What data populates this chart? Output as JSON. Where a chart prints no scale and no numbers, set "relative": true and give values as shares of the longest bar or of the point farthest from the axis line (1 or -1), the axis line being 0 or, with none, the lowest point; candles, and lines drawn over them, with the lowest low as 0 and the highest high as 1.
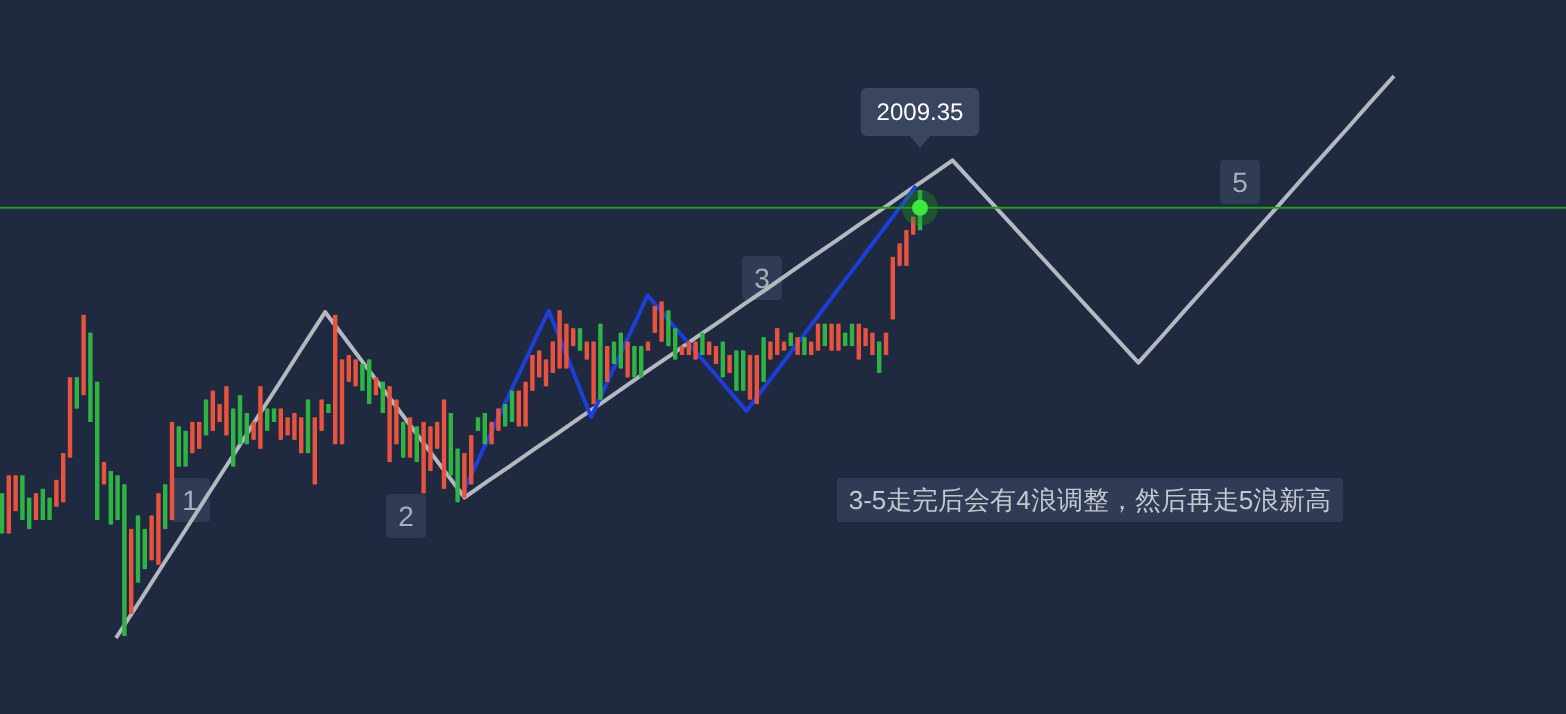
{
  "chart_data": [
    {
      "type": "candlestick",
      "relative": true,
      "tick_labels": false,
      "categories": [
        null,
        null,
        null,
        null,
        null,
        null,
        null,
        null,
        null,
        null,
        null,
        null,
        null,
        null,
        null,
        null,
        null,
        null,
        null,
        null,
        null,
        null,
        null,
        null,
        null,
        null,
        null,
        null,
        null,
        null,
        null,
        null,
        null,
        null,
        null,
        null,
        null,
        null,
        null,
        null,
        null,
        null,
        null,
        null,
        null,
        null,
        null,
        null,
        null,
        null,
        null,
        null,
        null,
        null,
        null,
        null,
        null,
        null,
        null,
        null,
        null,
        null,
        null,
        null,
        null,
        null,
        null,
        null,
        null,
        null,
        null,
        null,
        null,
        null,
        null,
        null,
        null,
        null,
        null,
        null,
        null,
        null,
        null,
        null,
        null,
        null,
        null,
        null,
        null,
        null,
        null,
        null,
        null,
        null,
        null,
        null,
        null,
        null,
        null,
        null,
        null,
        null,
        null,
        null,
        null,
        null,
        null,
        null,
        null,
        null,
        null,
        null,
        null,
        null,
        null,
        null,
        null,
        null,
        null,
        null,
        null,
        null,
        null,
        null,
        null,
        null,
        null,
        null,
        null,
        null,
        null,
        null,
        null,
        null,
        null,
        null
      ],
      "colors": [
        "#2fb344",
        "#e8533f",
        "#e8533f",
        "#2fb344",
        "#2fb344",
        "#e8533f",
        "#2fb344",
        "#2fb344",
        "#e8533f",
        "#e8533f",
        "#e8533f",
        "#2fb344",
        "#e8533f",
        "#2fb344",
        "#2fb344",
        "#e8533f",
        "#2fb344",
        "#2fb344",
        "#2fb344",
        "#e8533f",
        "#2fb344",
        "#2fb344",
        "#e8533f",
        "#e8533f",
        "#2fb344",
        "#e8533f",
        "#2fb344",
        "#2fb344",
        "#e8533f",
        "#e8533f",
        "#2fb344",
        "#e8533f",
        "#e8533f",
        "#e8533f",
        "#2fb344",
        "#2fb344",
        "#2fb344",
        "#e8533f",
        "#e8533f",
        "#2fb344",
        "#2fb344",
        "#e8533f",
        "#e8533f",
        "#e8533f",
        "#e8533f",
        "#2fb344",
        "#e8533f",
        "#e8533f",
        "#2fb344",
        "#e8533f",
        "#e8533f",
        "#e8533f",
        "#e8533f",
        "#2fb344",
        "#2fb344",
        "#e8533f",
        "#2fb344",
        "#e8533f",
        "#e8533f",
        "#2fb344",
        "#e8533f",
        "#2fb344",
        "#e8533f",
        "#e8533f",
        "#e8533f",
        "#e8533f",
        "#2fb344",
        "#2fb344",
        "#e8533f",
        "#e8533f",
        "#2fb344",
        "#2fb344",
        "#e8533f",
        "#e8533f",
        "#2fb344",
        "#2fb344",
        "#e8533f",
        "#e8533f",
        "#e8533f",
        "#e8533f",
        "#e8533f",
        "#e8533f",
        "#e8533f",
        "#e8533f",
        "#e8533f",
        "#2fb344",
        "#e8533f",
        "#e8533f",
        "#2fb344",
        "#e8533f",
        "#2fb344",
        "#2fb344",
        "#e8533f",
        "#2fb344",
        "#2fb344",
        "#e8533f",
        "#e8533f",
        "#e8533f",
        "#2fb344",
        "#2fb344",
        "#e8533f",
        "#e8533f",
        "#e8533f",
        "#2fb344",
        "#e8533f",
        "#e8533f",
        "#2fb344",
        "#e8533f",
        "#2fb344",
        "#2fb344",
        "#e8533f",
        "#e8533f",
        "#2fb344",
        "#e8533f",
        "#e8533f",
        "#e8533f",
        "#2fb344",
        "#e8533f",
        "#2fb344",
        "#e8533f",
        "#e8533f",
        "#2fb344",
        "#e8533f",
        "#e8533f",
        "#2fb344",
        "#2fb344",
        "#e8533f",
        "#e8533f",
        "#e8533f",
        "#2fb344",
        "#e8533f",
        "#e8533f",
        "#e8533f",
        "#e8533f",
        "#e8533f",
        "#2fb344"
      ],
      "ohlc": [
        [
          0.32,
          0.32,
          0.23,
          0.23
        ],
        [
          0.23,
          0.36,
          0.23,
          0.36
        ],
        [
          0.28,
          0.36,
          0.28,
          0.36
        ],
        [
          0.36,
          0.36,
          0.26,
          0.26
        ],
        [
          0.31,
          0.31,
          0.24,
          0.24
        ],
        [
          0.26,
          0.32,
          0.26,
          0.32
        ],
        [
          0.33,
          0.33,
          0.26,
          0.26
        ],
        [
          0.31,
          0.31,
          0.26,
          0.26
        ],
        [
          0.29,
          0.35,
          0.29,
          0.35
        ],
        [
          0.3,
          0.41,
          0.3,
          0.41
        ],
        [
          0.4,
          0.58,
          0.4,
          0.58
        ],
        [
          0.58,
          0.58,
          0.51,
          0.51
        ],
        [
          0.54,
          0.72,
          0.54,
          0.72
        ],
        [
          0.68,
          0.68,
          0.48,
          0.48
        ],
        [
          0.57,
          0.57,
          0.26,
          0.26
        ],
        [
          0.34,
          0.39,
          0.34,
          0.39
        ],
        [
          0.37,
          0.37,
          0.25,
          0.25
        ],
        [
          0.36,
          0.36,
          0.26,
          0.26
        ],
        [
          0.34,
          0.34,
          0,
          0
        ],
        [
          0.05,
          0.24,
          0.05,
          0.24
        ],
        [
          0.27,
          0.27,
          0.12,
          0.12
        ],
        [
          0.24,
          0.24,
          0.15,
          0.15
        ],
        [
          0.17,
          0.27,
          0.17,
          0.27
        ],
        [
          0.16,
          0.32,
          0.16,
          0.32
        ],
        [
          0.34,
          0.34,
          0.24,
          0.24
        ],
        [
          0.26,
          0.48,
          0.26,
          0.48
        ],
        [
          0.47,
          0.47,
          0.38,
          0.38
        ],
        [
          0.46,
          0.46,
          0.38,
          0.38
        ],
        [
          0.41,
          0.48,
          0.41,
          0.48
        ],
        [
          0.42,
          0.48,
          0.42,
          0.48
        ],
        [
          0.53,
          0.53,
          0.45,
          0.45
        ],
        [
          0.46,
          0.55,
          0.46,
          0.55
        ],
        [
          0.48,
          0.52,
          0.48,
          0.52
        ],
        [
          0.45,
          0.56,
          0.45,
          0.56
        ],
        [
          0.51,
          0.51,
          0.38,
          0.38
        ],
        [
          0.54,
          0.54,
          0.43,
          0.43
        ],
        [
          0.5,
          0.5,
          0.43,
          0.43
        ],
        [
          0.44,
          0.48,
          0.44,
          0.48
        ],
        [
          0.42,
          0.56,
          0.42,
          0.56
        ],
        [
          0.51,
          0.51,
          0.46,
          0.46
        ],
        [
          0.51,
          0.51,
          0.48,
          0.48
        ],
        [
          0.44,
          0.51,
          0.44,
          0.51
        ],
        [
          0.45,
          0.49,
          0.45,
          0.49
        ],
        [
          0.44,
          0.5,
          0.44,
          0.5
        ],
        [
          0.41,
          0.49,
          0.41,
          0.49
        ],
        [
          0.53,
          0.53,
          0.41,
          0.41
        ],
        [
          0.34,
          0.49,
          0.34,
          0.49
        ],
        [
          0.46,
          0.53,
          0.46,
          0.53
        ],
        [
          0.52,
          0.52,
          0.5,
          0.5
        ],
        [
          0.43,
          0.72,
          0.43,
          0.72
        ],
        [
          0.43,
          0.62,
          0.43,
          0.62
        ],
        [
          0.57,
          0.63,
          0.57,
          0.63
        ],
        [
          0.56,
          0.62,
          0.56,
          0.62
        ],
        [
          0.61,
          0.61,
          0.55,
          0.55
        ],
        [
          0.62,
          0.62,
          0.52,
          0.52
        ],
        [
          0.54,
          0.58,
          0.54,
          0.58
        ],
        [
          0.57,
          0.57,
          0.5,
          0.5
        ],
        [
          0.39,
          0.56,
          0.39,
          0.56
        ],
        [
          0.43,
          0.53,
          0.43,
          0.53
        ],
        [
          0.48,
          0.48,
          0.4,
          0.4
        ],
        [
          0.4,
          0.49,
          0.4,
          0.49
        ],
        [
          0.47,
          0.47,
          0.39,
          0.39
        ],
        [
          0.32,
          0.48,
          0.32,
          0.48
        ],
        [
          0.37,
          0.47,
          0.37,
          0.47
        ],
        [
          0.42,
          0.48,
          0.42,
          0.48
        ],
        [
          0.33,
          0.53,
          0.33,
          0.53
        ],
        [
          0.5,
          0.5,
          0.36,
          0.36
        ],
        [
          0.42,
          0.42,
          0.3,
          0.3
        ],
        [
          0.31,
          0.41,
          0.31,
          0.41
        ],
        [
          0.34,
          0.45,
          0.34,
          0.45
        ],
        [
          0.49,
          0.49,
          0.46,
          0.46
        ],
        [
          0.5,
          0.5,
          0.43,
          0.43
        ],
        [
          0.43,
          0.48,
          0.43,
          0.48
        ],
        [
          0.46,
          0.51,
          0.46,
          0.51
        ],
        [
          0.52,
          0.52,
          0.47,
          0.47
        ],
        [
          0.55,
          0.55,
          0.48,
          0.48
        ],
        [
          0.47,
          0.55,
          0.47,
          0.55
        ],
        [
          0.47,
          0.57,
          0.47,
          0.57
        ],
        [
          0.55,
          0.63,
          0.55,
          0.63
        ],
        [
          0.58,
          0.64,
          0.58,
          0.64
        ],
        [
          0.56,
          0.62,
          0.56,
          0.62
        ],
        [
          0.59,
          0.66,
          0.59,
          0.66
        ],
        [
          0.6,
          0.73,
          0.6,
          0.73
        ],
        [
          0.6,
          0.7,
          0.6,
          0.7
        ],
        [
          0.65,
          0.69,
          0.65,
          0.69
        ],
        [
          0.69,
          0.69,
          0.64,
          0.64
        ],
        [
          0.62,
          0.66,
          0.62,
          0.66
        ],
        [
          0.52,
          0.66,
          0.52,
          0.66
        ],
        [
          0.7,
          0.7,
          0.53,
          0.53
        ],
        [
          0.57,
          0.65,
          0.57,
          0.65
        ],
        [
          0.66,
          0.66,
          0.61,
          0.61
        ],
        [
          0.68,
          0.68,
          0.6,
          0.6
        ],
        [
          0.58,
          0.66,
          0.58,
          0.66
        ],
        [
          0.65,
          0.65,
          0.58,
          0.58
        ],
        [
          0.65,
          0.65,
          0.58,
          0.58
        ],
        [
          0.64,
          0.66,
          0.64,
          0.66
        ],
        [
          0.68,
          0.74,
          0.68,
          0.74
        ],
        [
          0.66,
          0.75,
          0.66,
          0.75
        ],
        [
          0.73,
          0.73,
          0.65,
          0.65
        ],
        [
          0.69,
          0.69,
          0.62,
          0.62
        ],
        [
          0.63,
          0.65,
          0.63,
          0.65
        ],
        [
          0.63,
          0.66,
          0.63,
          0.66
        ],
        [
          0.62,
          0.66,
          0.62,
          0.66
        ],
        [
          0.68,
          0.68,
          0.63,
          0.63
        ],
        [
          0.63,
          0.66,
          0.63,
          0.66
        ],
        [
          0.61,
          0.65,
          0.61,
          0.65
        ],
        [
          0.66,
          0.66,
          0.58,
          0.58
        ],
        [
          0.59,
          0.63,
          0.59,
          0.63
        ],
        [
          0.64,
          0.64,
          0.55,
          0.55
        ],
        [
          0.64,
          0.64,
          0.55,
          0.55
        ],
        [
          0.53,
          0.63,
          0.53,
          0.63
        ],
        [
          0.52,
          0.63,
          0.52,
          0.63
        ],
        [
          0.67,
          0.67,
          0.57,
          0.57
        ],
        [
          0.62,
          0.66,
          0.62,
          0.66
        ],
        [
          0.63,
          0.69,
          0.63,
          0.69
        ],
        [
          0.64,
          0.66,
          0.64,
          0.66
        ],
        [
          0.68,
          0.68,
          0.65,
          0.65
        ],
        [
          0.63,
          0.67,
          0.63,
          0.67
        ],
        [
          0.67,
          0.67,
          0.63,
          0.63
        ],
        [
          0.63,
          0.66,
          0.63,
          0.66
        ],
        [
          0.64,
          0.7,
          0.64,
          0.7
        ],
        [
          0.7,
          0.7,
          0.65,
          0.65
        ],
        [
          0.64,
          0.7,
          0.64,
          0.7
        ],
        [
          0.64,
          0.7,
          0.64,
          0.7
        ],
        [
          0.68,
          0.68,
          0.65,
          0.65
        ],
        [
          0.7,
          0.7,
          0.65,
          0.65
        ],
        [
          0.62,
          0.7,
          0.62,
          0.7
        ],
        [
          0.65,
          0.69,
          0.65,
          0.69
        ],
        [
          0.63,
          0.68,
          0.63,
          0.68
        ],
        [
          0.66,
          0.66,
          0.59,
          0.59
        ],
        [
          0.63,
          0.68,
          0.63,
          0.68
        ],
        [
          0.71,
          0.85,
          0.71,
          0.85
        ],
        [
          0.83,
          0.88,
          0.83,
          0.88
        ],
        [
          0.83,
          0.91,
          0.83,
          0.91
        ],
        [
          0.9,
          0.94,
          0.9,
          0.94
        ],
        [
          1,
          1,
          0.91,
          0.91
        ]
      ],
      "ref_lines": [
        {
          "axis": "y",
          "value": 0.96,
          "color": "#1f9e1f"
        }
      ],
      "annotations": [
        "2009.35",
        "3-5走完后会有4浪调整，然后再走5浪新高"
      ]
    },
    {
      "type": "line",
      "relative": true,
      "tick_labels": false,
      "categories": [
        null,
        null,
        null,
        null,
        null,
        null,
        null,
        null,
        null,
        null,
        null,
        null,
        null,
        null,
        null,
        null,
        null,
        null,
        null,
        null,
        null,
        null,
        null,
        null,
        null,
        null,
        null,
        null,
        null,
        null,
        null,
        null,
        null,
        null,
        null,
        null,
        null,
        null,
        null,
        null,
        null,
        null,
        null,
        null,
        null,
        null,
        null,
        null,
        null,
        null,
        null,
        null,
        null,
        null,
        null,
        null
      ],
      "series": [
        {
          "color": "#b4b8bf",
          "values": [
            0,
            0.064,
            0.129,
            0.193,
            0.258,
            0.322,
            0.387,
            0.451,
            0.516,
            0.58,
            0.525,
            0.47,
            0.415,
            0.36,
            0.305,
            0.25,
            0.279,
            0.307,
            0.336,
            0.364,
            0.393,
            0.421,
            0.45,
            0.479,
            0.507,
            0.536,
            0.564,
            0.593,
            0.621,
            0.65,
            0.679,
            0.707,
            0.736,
            0.764,
            0.793,
            0.821,
            0.85,
            0.805,
            0.76,
            0.715,
            0.67,
            0.625,
            0.58,
            0.535,
            0.49,
            0.536,
            0.583,
            0.629,
            0.675,
            0.722,
            0.768,
            0.815,
            0.861,
            0.907,
            0.954,
            1
          ]
        }
      ],
      "annotations": [
        "1",
        "2",
        "3",
        "5"
      ]
    },
    {
      "type": "line",
      "relative": true,
      "tick_labels": false,
      "categories": [
        null,
        null,
        null,
        null,
        null,
        null,
        null,
        null,
        null,
        null,
        null,
        null,
        null,
        null,
        null,
        null,
        null,
        null,
        null,
        null,
        null,
        null,
        null,
        null,
        null,
        null,
        null,
        null,
        null,
        null,
        null,
        null,
        null
      ],
      "series": [
        {
          "color": "#1d3fd8",
          "values": [
            0,
            0.098,
            0.197,
            0.295,
            0.393,
            0.492,
            0.59,
            0.473,
            0.357,
            0.24,
            0.34,
            0.44,
            0.54,
            0.64,
            0.586,
            0.531,
            0.477,
            0.423,
            0.369,
            0.314,
            0.26,
            0.322,
            0.383,
            0.445,
            0.507,
            0.568,
            0.63,
            0.692,
            0.753,
            0.815,
            0.877,
            0.938,
            1
          ]
        }
      ]
    }
  ]
}
